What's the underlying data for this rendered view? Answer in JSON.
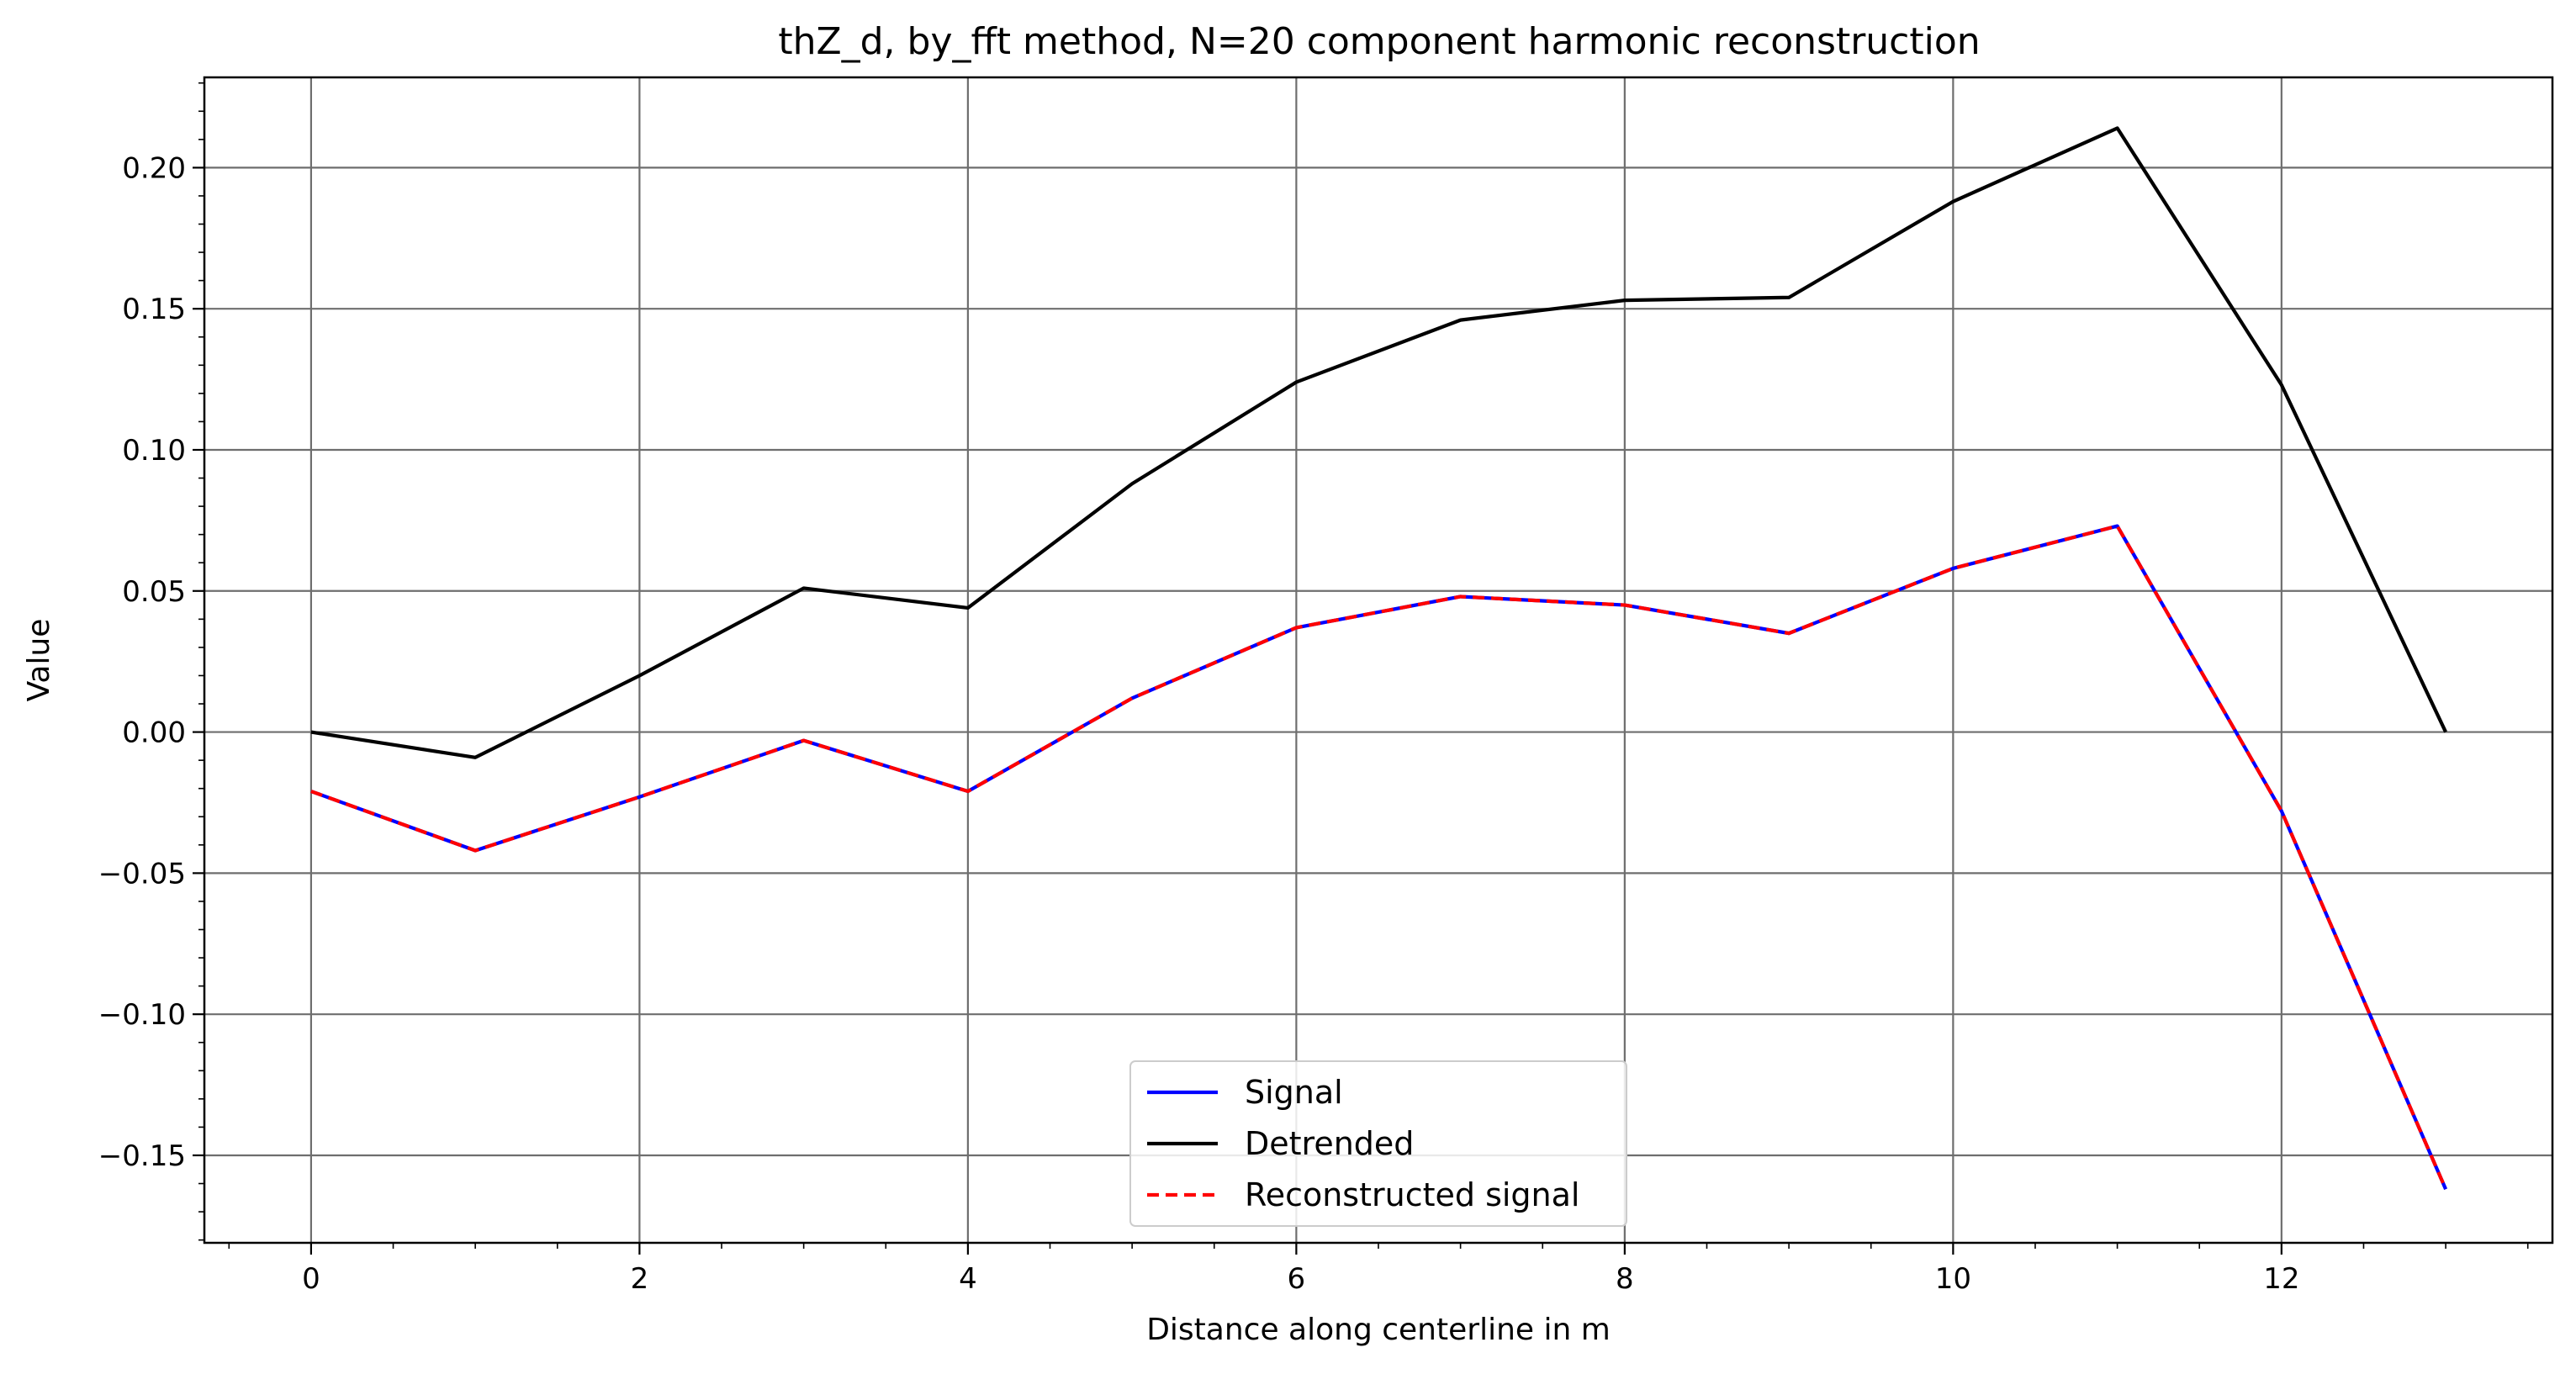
{
  "chart_data": {
    "type": "line",
    "title": "thZ_d, by_fft method, N=20 component harmonic reconstruction",
    "xlabel": "Distance along centerline in m",
    "ylabel": "Value",
    "xlim": [
      -0.65,
      13.65
    ],
    "ylim": [
      -0.181,
      0.232
    ],
    "x_ticks": [
      0,
      2,
      4,
      6,
      8,
      10,
      12
    ],
    "y_ticks": [
      -0.15,
      -0.1,
      -0.05,
      0.0,
      0.05,
      0.1,
      0.15,
      0.2
    ],
    "x_tick_labels": [
      "0",
      "2",
      "4",
      "6",
      "8",
      "10",
      "12"
    ],
    "y_tick_labels": [
      "−0.15",
      "−0.10",
      "−0.05",
      "0.00",
      "0.05",
      "0.10",
      "0.15",
      "0.20"
    ],
    "grid": true,
    "legend_position": "lower-center",
    "x": [
      0,
      1,
      2,
      3,
      4,
      5,
      6,
      7,
      8,
      9,
      10,
      11,
      12,
      13
    ],
    "series": [
      {
        "name": "Signal",
        "color": "#0000ff",
        "dash": "solid",
        "values": [
          -0.021,
          -0.042,
          -0.023,
          -0.003,
          -0.021,
          0.012,
          0.037,
          0.048,
          0.045,
          0.035,
          0.058,
          0.073,
          -0.028,
          -0.162
        ]
      },
      {
        "name": "Detrended",
        "color": "#000000",
        "dash": "solid",
        "values": [
          0.0,
          -0.009,
          0.02,
          0.051,
          0.044,
          0.088,
          0.124,
          0.146,
          0.153,
          0.154,
          0.188,
          0.214,
          0.123,
          0.0
        ]
      },
      {
        "name": "Reconstructed signal",
        "color": "#ff0000",
        "dash": "dashed",
        "values": [
          -0.021,
          -0.042,
          -0.023,
          -0.003,
          -0.021,
          0.012,
          0.037,
          0.048,
          0.045,
          0.035,
          0.058,
          0.073,
          -0.028,
          -0.162
        ]
      }
    ]
  }
}
